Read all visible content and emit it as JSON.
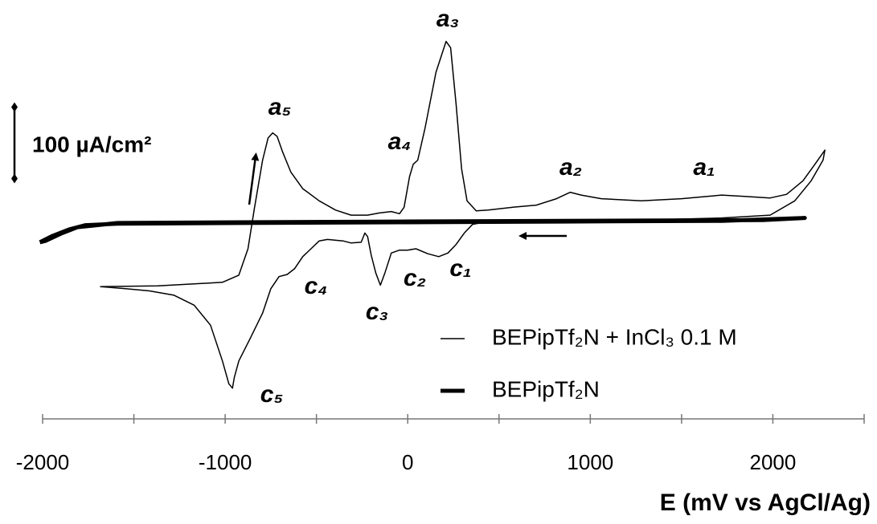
{
  "chart_data": {
    "type": "line",
    "x_label": "E (mV vs AgCl/Ag)",
    "xlim": [
      -2000,
      2500
    ],
    "xticks": [
      -2000,
      -1000,
      0,
      1000,
      2000
    ],
    "xminor_ticks": [
      -1500,
      -500,
      500,
      1500,
      2500
    ],
    "ylim": [
      -275,
      266
    ],
    "scale_bar": {
      "value": 100,
      "label": "100 µA/cm²"
    },
    "peak_labels": [
      "a₁",
      "a₂",
      "a₃",
      "a₄",
      "a₅",
      "c₁",
      "c₂",
      "c₃",
      "c₄",
      "c₅"
    ],
    "series": [
      {
        "name": "BEPipTf₂N + InCl₃ 0.1 M",
        "color": "#000000",
        "width": 1.5,
        "x": [
          -1685,
          -1370,
          -1015,
          -925,
          -875,
          -840,
          -795,
          -765,
          -740,
          -715,
          -685,
          -640,
          -575,
          -485,
          -395,
          -310,
          -220,
          -155,
          -90,
          -45,
          -20,
          10,
          30,
          55,
          95,
          155,
          210,
          235,
          265,
          295,
          325,
          375,
          440,
          575,
          705,
          815,
          890,
          950,
          1060,
          1280,
          1500,
          1635,
          1720,
          1855,
          1985,
          2075,
          2165,
          2230,
          2285,
          2275,
          2210,
          2120,
          1985,
          1720,
          1280,
          840,
          395,
          355,
          310,
          265,
          220,
          170,
          110,
          45,
          0,
          -45,
          -90,
          -125,
          -150,
          -175,
          -200,
          -220,
          -235,
          -255,
          -310,
          -355,
          -440,
          -485,
          -530,
          -575,
          -620,
          -660,
          -705,
          -750,
          -795,
          -860,
          -925,
          -950,
          -960,
          -980,
          -1015,
          -1080,
          -1170,
          -1280,
          -1415,
          -1545,
          -1685
        ],
        "values": [
          -90,
          -89,
          -84,
          -74,
          -37,
          19,
          87,
          118,
          125,
          120,
          98,
          70,
          47,
          30,
          17,
          10,
          10,
          13,
          15,
          12,
          21,
          64,
          81,
          87,
          132,
          210,
          253,
          244,
          165,
          75,
          30,
          16,
          17,
          21,
          24,
          33,
          42,
          38,
          33,
          30,
          33,
          36,
          38,
          36,
          34,
          39,
          58,
          81,
          101,
          87,
          58,
          30,
          10,
          6,
          3,
          1,
          -1,
          -3,
          -15,
          -31,
          -43,
          -48,
          -44,
          -37,
          -39,
          -39,
          -43,
          -71,
          -88,
          -71,
          -46,
          -20,
          -15,
          -28,
          -29,
          -26,
          -24,
          -26,
          -37,
          -48,
          -65,
          -73,
          -76,
          -93,
          -127,
          -161,
          -194,
          -217,
          -232,
          -226,
          -194,
          -144,
          -116,
          -102,
          -96,
          -93,
          -90
        ]
      },
      {
        "name": "BEPipTf₂N",
        "color": "#000000",
        "width": 5,
        "x": [
          -2015,
          -1945,
          -1855,
          -1765,
          -1590,
          -925,
          -45,
          840,
          1720,
          2175,
          1945,
          840,
          -45,
          -925,
          -1590,
          -1810,
          -1900,
          -1985,
          -2015
        ],
        "values": [
          -28,
          -19,
          -10,
          -4,
          -2,
          -1,
          0,
          1,
          2,
          6,
          3,
          2,
          1,
          0,
          -1,
          -7,
          -16,
          -26,
          -28
        ]
      }
    ]
  }
}
